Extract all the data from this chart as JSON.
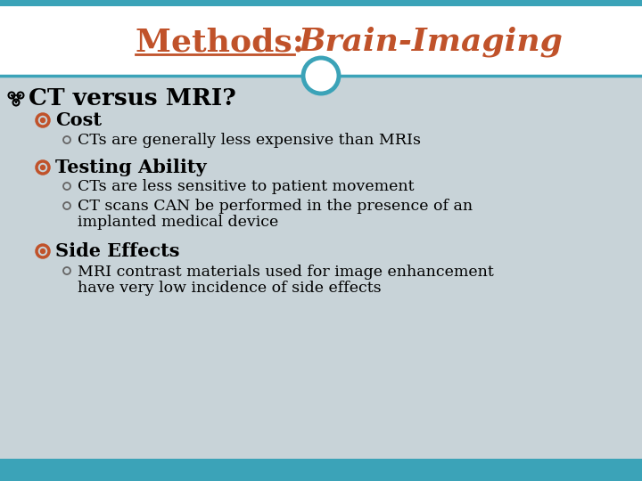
{
  "title_methods": "Methods: ",
  "title_brain": "Brain-Imaging",
  "title_color": "#c0522a",
  "bg_color_top": "#ffffff",
  "bg_color_bottom": "#c8d3d8",
  "border_color": "#3ba3b8",
  "text_color": "#000000",
  "bullet1": "CT versus MRI?",
  "sub1": "Cost",
  "sub1_detail1": "CTs are generally less expensive than MRIs",
  "sub2": "Testing Ability",
  "sub2_detail1": "CTs are less sensitive to patient movement",
  "sub2_detail2a": "CT scans CAN be performed in the presence of an",
  "sub2_detail2b": "implanted medical device",
  "sub3": "Side Effects",
  "sub3_detail1a": "MRI contrast materials used for image enhancement",
  "sub3_detail1b": "have very low incidence of side effects",
  "footer_color": "#3ba3b8",
  "circle_color": "#3ba3b8",
  "orange_color": "#c0522a",
  "figsize": [
    7.2,
    5.4
  ],
  "dpi": 100
}
